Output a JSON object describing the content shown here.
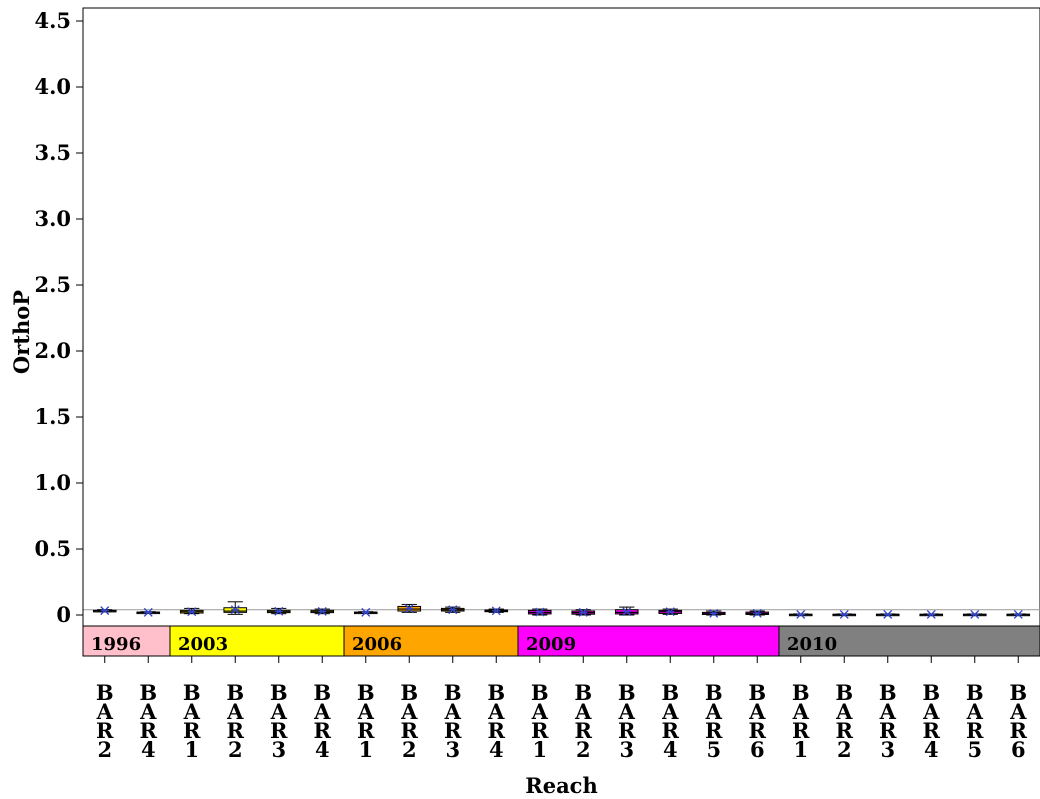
{
  "chart_data": {
    "type": "box",
    "xlabel": "Reach",
    "ylabel": "OrthoP",
    "ylim": [
      0,
      4.6
    ],
    "yticks": [
      "0",
      "0.5",
      "1.0",
      "1.5",
      "2.0",
      "2.5",
      "3.0",
      "3.5",
      "4.0",
      "4.5"
    ],
    "ytick_values": [
      0,
      0.5,
      1.0,
      1.5,
      2.0,
      2.5,
      3.0,
      3.5,
      4.0,
      4.5
    ],
    "reference_line": 0.04,
    "groups": [
      {
        "label": "1996",
        "color": "#ffc0cb",
        "count": 2
      },
      {
        "label": "2003",
        "color": "#ffff00",
        "count": 4
      },
      {
        "label": "2006",
        "color": "#ffa500",
        "count": 4
      },
      {
        "label": "2009",
        "color": "#ff00ff",
        "count": 6
      },
      {
        "label": "2010",
        "color": "#808080",
        "count": 6
      }
    ],
    "boxes": [
      {
        "reach": "BAR2",
        "year": "1996",
        "min": 0.025,
        "q1": 0.03,
        "median": 0.032,
        "q3": 0.035,
        "max": 0.04,
        "mean": 0.033
      },
      {
        "reach": "BAR4",
        "year": "1996",
        "min": 0.015,
        "q1": 0.018,
        "median": 0.02,
        "q3": 0.022,
        "max": 0.025,
        "mean": 0.02
      },
      {
        "reach": "BAR1",
        "year": "2003",
        "min": 0.01,
        "q1": 0.015,
        "median": 0.025,
        "q3": 0.035,
        "max": 0.05,
        "mean": 0.025
      },
      {
        "reach": "BAR2",
        "year": "2003",
        "min": 0.005,
        "q1": 0.02,
        "median": 0.03,
        "q3": 0.055,
        "max": 0.1,
        "mean": 0.04
      },
      {
        "reach": "BAR3",
        "year": "2003",
        "min": 0.01,
        "q1": 0.018,
        "median": 0.025,
        "q3": 0.035,
        "max": 0.05,
        "mean": 0.028
      },
      {
        "reach": "BAR4",
        "year": "2003",
        "min": 0.01,
        "q1": 0.018,
        "median": 0.025,
        "q3": 0.035,
        "max": 0.045,
        "mean": 0.027
      },
      {
        "reach": "BAR1",
        "year": "2006",
        "min": 0.015,
        "q1": 0.018,
        "median": 0.02,
        "q3": 0.022,
        "max": 0.025,
        "mean": 0.02
      },
      {
        "reach": "BAR2",
        "year": "2006",
        "min": 0.02,
        "q1": 0.03,
        "median": 0.045,
        "q3": 0.065,
        "max": 0.08,
        "mean": 0.05
      },
      {
        "reach": "BAR3",
        "year": "2006",
        "min": 0.02,
        "q1": 0.03,
        "median": 0.04,
        "q3": 0.05,
        "max": 0.06,
        "mean": 0.04
      },
      {
        "reach": "BAR4",
        "year": "2006",
        "min": 0.02,
        "q1": 0.025,
        "median": 0.03,
        "q3": 0.038,
        "max": 0.045,
        "mean": 0.032
      },
      {
        "reach": "BAR1",
        "year": "2009",
        "min": 0.0,
        "q1": 0.008,
        "median": 0.02,
        "q3": 0.035,
        "max": 0.045,
        "mean": 0.022
      },
      {
        "reach": "BAR2",
        "year": "2009",
        "min": 0.0,
        "q1": 0.006,
        "median": 0.018,
        "q3": 0.03,
        "max": 0.04,
        "mean": 0.02
      },
      {
        "reach": "BAR3",
        "year": "2009",
        "min": 0.0,
        "q1": 0.008,
        "median": 0.02,
        "q3": 0.04,
        "max": 0.06,
        "mean": 0.025
      },
      {
        "reach": "BAR4",
        "year": "2009",
        "min": 0.005,
        "q1": 0.012,
        "median": 0.025,
        "q3": 0.035,
        "max": 0.045,
        "mean": 0.025
      },
      {
        "reach": "BAR5",
        "year": "2009",
        "min": 0.0,
        "q1": 0.004,
        "median": 0.01,
        "q3": 0.02,
        "max": 0.03,
        "mean": 0.012
      },
      {
        "reach": "BAR6",
        "year": "2009",
        "min": 0.0,
        "q1": 0.004,
        "median": 0.012,
        "q3": 0.022,
        "max": 0.03,
        "mean": 0.013
      },
      {
        "reach": "BAR1",
        "year": "2010",
        "min": 0.0,
        "q1": 0.002,
        "median": 0.004,
        "q3": 0.006,
        "max": 0.008,
        "mean": 0.004
      },
      {
        "reach": "BAR2",
        "year": "2010",
        "min": 0.0,
        "q1": 0.002,
        "median": 0.004,
        "q3": 0.006,
        "max": 0.008,
        "mean": 0.004
      },
      {
        "reach": "BAR3",
        "year": "2010",
        "min": 0.0,
        "q1": 0.002,
        "median": 0.004,
        "q3": 0.006,
        "max": 0.008,
        "mean": 0.004
      },
      {
        "reach": "BAR4",
        "year": "2010",
        "min": 0.0,
        "q1": 0.002,
        "median": 0.004,
        "q3": 0.006,
        "max": 0.008,
        "mean": 0.004
      },
      {
        "reach": "BAR5",
        "year": "2010",
        "min": 0.0,
        "q1": 0.002,
        "median": 0.004,
        "q3": 0.006,
        "max": 0.008,
        "mean": 0.004
      },
      {
        "reach": "BAR6",
        "year": "2010",
        "min": 0.0,
        "q1": 0.002,
        "median": 0.004,
        "q3": 0.006,
        "max": 0.008,
        "mean": 0.004
      }
    ],
    "mean_marker_color": "#3344cc",
    "box_color": "#ff00ff",
    "grid": false,
    "legend": "none"
  }
}
